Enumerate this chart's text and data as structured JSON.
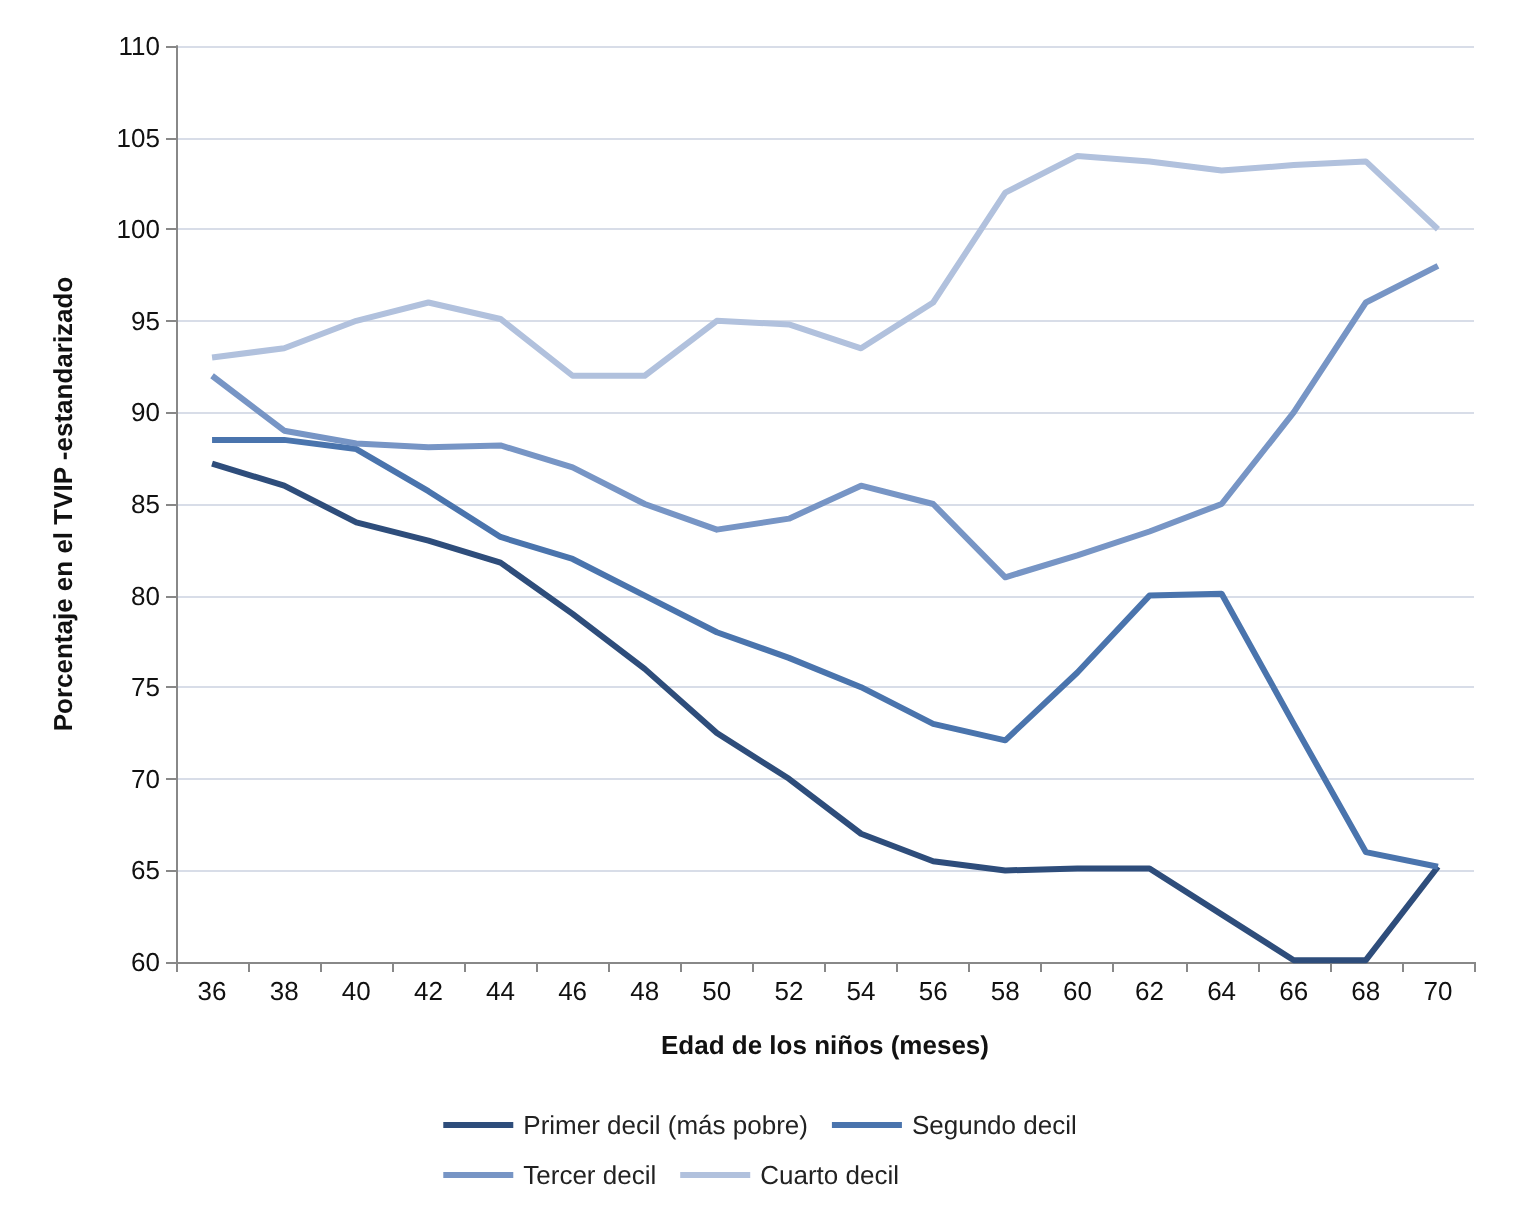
{
  "chart_data": {
    "type": "line",
    "xlabel": "Edad de los niños (meses)",
    "ylabel": "Porcentaje en el TVIP -estandarizado",
    "categories": [
      "36",
      "38",
      "40",
      "42",
      "44",
      "46",
      "48",
      "50",
      "52",
      "54",
      "56",
      "58",
      "60",
      "62",
      "64",
      "66",
      "68",
      "70"
    ],
    "series": [
      {
        "name": "Primer decil (más pobre)",
        "color": "#2e4d7b",
        "values": [
          87.2,
          86,
          84,
          83,
          81.8,
          79,
          76,
          72.5,
          70,
          67,
          65.5,
          65,
          65.1,
          65.1,
          62.6,
          60.1,
          60.1,
          65.2
        ]
      },
      {
        "name": "Segundo decil",
        "color": "#4a74ad",
        "values": [
          88.5,
          88.5,
          88,
          85.7,
          83.2,
          82,
          80,
          78,
          76.6,
          75,
          73,
          72.1,
          75.8,
          80,
          80.1,
          73,
          66,
          65.2
        ]
      },
      {
        "name": "Tercer decil",
        "color": "#7795c5",
        "values": [
          92,
          89,
          88.3,
          88.1,
          88.2,
          87,
          85,
          83.6,
          84.2,
          86,
          85,
          81,
          82.2,
          83.5,
          85,
          90,
          96,
          98
        ]
      },
      {
        "name": "Cuarto decil",
        "color": "#b1c1dd",
        "values": [
          93,
          93.5,
          95,
          96,
          95.1,
          92,
          92,
          95,
          94.8,
          93.5,
          96,
          102,
          104,
          103.7,
          103.2,
          103.5,
          103.7,
          100
        ]
      }
    ],
    "ylim": [
      60,
      110
    ],
    "yticks": [
      60,
      65,
      70,
      75,
      80,
      85,
      90,
      95,
      100,
      105,
      110
    ],
    "grid": "y",
    "legend": "bottom",
    "marker": "none",
    "line_style": "solid"
  }
}
